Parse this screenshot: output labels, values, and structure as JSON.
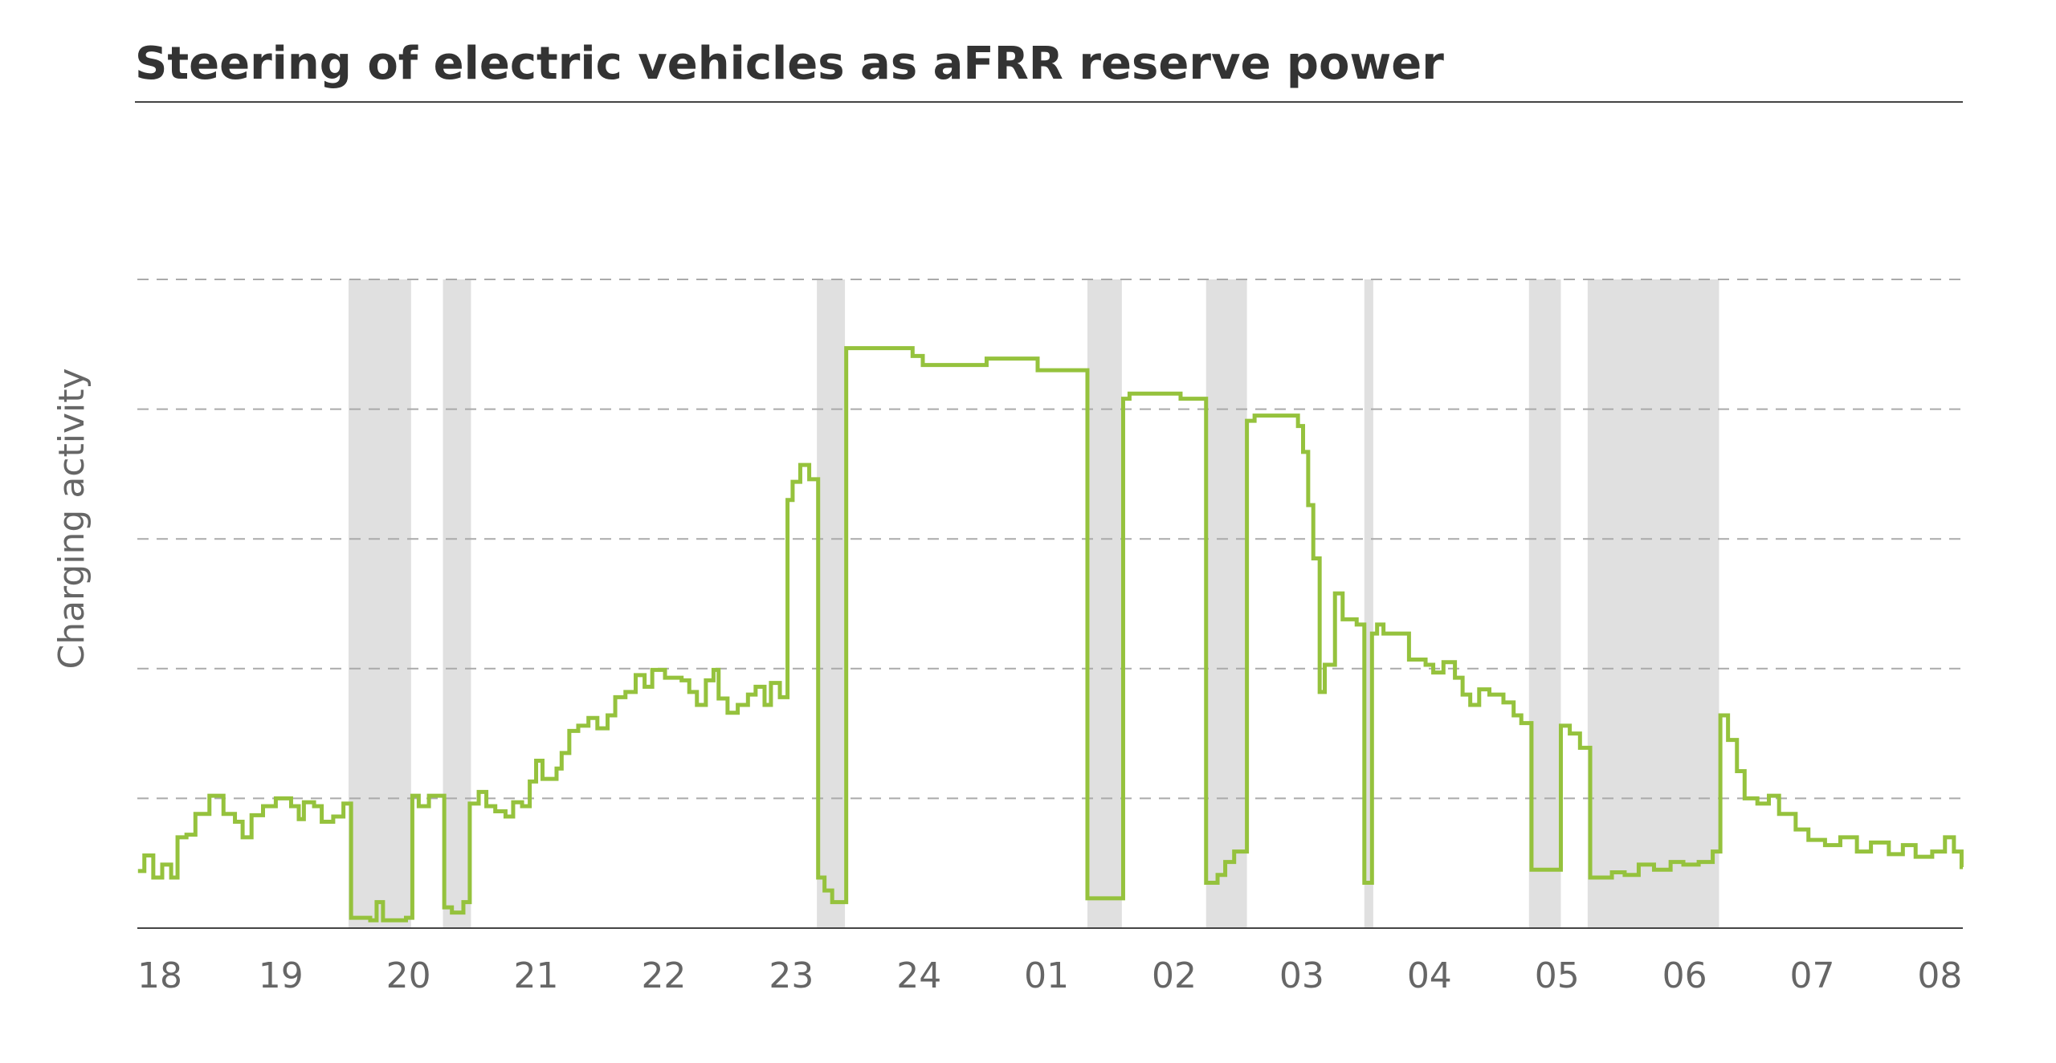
{
  "chart_data": {
    "type": "line",
    "title": "Steering of electric vehicles as aFRR reserve power",
    "y_label": "Charging activity",
    "xlim": [
      17.875,
      32.18
    ],
    "xticks": [
      18,
      19,
      20,
      21,
      22,
      23,
      24,
      {
        "value": 25,
        "label": "01"
      },
      {
        "value": 26,
        "label": "02"
      },
      {
        "value": 27,
        "label": "03"
      },
      {
        "value": 28,
        "label": "04"
      },
      {
        "value": 29,
        "label": "05"
      },
      {
        "value": 30,
        "label": "06"
      },
      {
        "value": 31,
        "label": "07"
      },
      {
        "value": 32,
        "label": "08"
      }
    ],
    "ylim": [
      0,
      5
    ],
    "yticks": [
      1,
      2,
      3,
      4,
      5
    ],
    "grid": true,
    "step": true,
    "band_color": "#e0e0e0",
    "bands": [
      [
        19.53,
        20.02
      ],
      [
        20.27,
        20.49
      ],
      [
        23.2,
        23.42
      ],
      [
        25.32,
        25.59
      ],
      [
        26.25,
        26.57
      ],
      [
        27.49,
        27.56
      ],
      [
        28.78,
        29.03
      ],
      [
        29.24,
        30.27
      ]
    ],
    "series": [
      {
        "color": "#95c23d",
        "x": [
          17.88,
          17.93,
          18.0,
          18.07,
          18.14,
          18.19,
          18.26,
          18.33,
          18.44,
          18.55,
          18.64,
          18.7,
          18.77,
          18.86,
          18.96,
          19.08,
          19.14,
          19.18,
          19.26,
          19.32,
          19.41,
          19.49,
          19.55,
          19.7,
          19.75,
          19.8,
          19.98,
          20.03,
          20.08,
          20.16,
          20.28,
          20.34,
          20.43,
          20.48,
          20.55,
          20.61,
          20.68,
          20.76,
          20.82,
          20.89,
          20.95,
          21.0,
          21.05,
          21.16,
          21.2,
          21.26,
          21.33,
          21.41,
          21.48,
          21.56,
          21.62,
          21.7,
          21.78,
          21.85,
          21.91,
          22.01,
          22.14,
          22.2,
          22.26,
          22.33,
          22.39,
          22.43,
          22.5,
          22.58,
          22.66,
          22.72,
          22.79,
          22.84,
          22.91,
          22.97,
          23.01,
          23.07,
          23.14,
          23.21,
          23.26,
          23.32,
          23.43,
          23.68,
          23.95,
          24.03,
          24.53,
          24.93,
          25.32,
          25.6,
          25.65,
          26.05,
          26.25,
          26.34,
          26.4,
          26.47,
          26.57,
          26.63,
          26.97,
          27.01,
          27.05,
          27.09,
          27.14,
          27.18,
          27.26,
          27.32,
          27.43,
          27.49,
          27.55,
          27.59,
          27.64,
          27.84,
          27.97,
          28.03,
          28.11,
          28.2,
          28.26,
          28.32,
          28.39,
          28.47,
          28.58,
          28.66,
          28.72,
          28.8,
          28.99,
          29.03,
          29.1,
          29.18,
          29.26,
          29.43,
          29.53,
          29.64,
          29.76,
          29.89,
          29.99,
          30.11,
          30.22,
          30.28,
          30.34,
          30.41,
          30.47,
          30.57,
          30.66,
          30.74,
          30.87,
          30.97,
          31.1,
          31.22,
          31.35,
          31.46,
          31.6,
          31.71,
          31.81,
          31.94,
          32.04,
          32.11,
          32.17
        ],
        "values": [
          0.44,
          0.56,
          0.39,
          0.49,
          0.39,
          0.7,
          0.72,
          0.88,
          1.02,
          0.88,
          0.82,
          0.7,
          0.87,
          0.94,
          1.0,
          0.94,
          0.84,
          0.97,
          0.94,
          0.82,
          0.86,
          0.96,
          0.08,
          0.06,
          0.2,
          0.06,
          0.08,
          1.02,
          0.94,
          1.02,
          0.16,
          0.12,
          0.2,
          0.96,
          1.05,
          0.94,
          0.9,
          0.86,
          0.97,
          0.94,
          1.13,
          1.29,
          1.15,
          1.23,
          1.35,
          1.52,
          1.56,
          1.62,
          1.54,
          1.64,
          1.78,
          1.82,
          1.95,
          1.86,
          1.99,
          1.93,
          1.91,
          1.82,
          1.72,
          1.91,
          1.99,
          1.77,
          1.66,
          1.72,
          1.8,
          1.86,
          1.72,
          1.89,
          1.78,
          3.3,
          3.44,
          3.57,
          3.46,
          0.39,
          0.29,
          0.2,
          4.47,
          4.47,
          4.41,
          4.34,
          4.39,
          4.3,
          0.23,
          4.08,
          4.12,
          4.08,
          0.35,
          0.41,
          0.51,
          0.59,
          3.91,
          3.95,
          3.87,
          3.67,
          3.26,
          2.85,
          1.82,
          2.03,
          2.58,
          2.38,
          2.34,
          0.35,
          2.27,
          2.34,
          2.27,
          2.07,
          2.03,
          1.97,
          2.05,
          1.93,
          1.8,
          1.72,
          1.84,
          1.8,
          1.74,
          1.64,
          1.58,
          0.45,
          0.45,
          1.56,
          1.5,
          1.39,
          0.39,
          0.43,
          0.41,
          0.49,
          0.45,
          0.51,
          0.49,
          0.51,
          0.59,
          1.64,
          1.45,
          1.21,
          1.0,
          0.96,
          1.02,
          0.88,
          0.76,
          0.68,
          0.64,
          0.7,
          0.59,
          0.66,
          0.57,
          0.64,
          0.55,
          0.59,
          0.7,
          0.59,
          0.47
        ]
      }
    ]
  }
}
